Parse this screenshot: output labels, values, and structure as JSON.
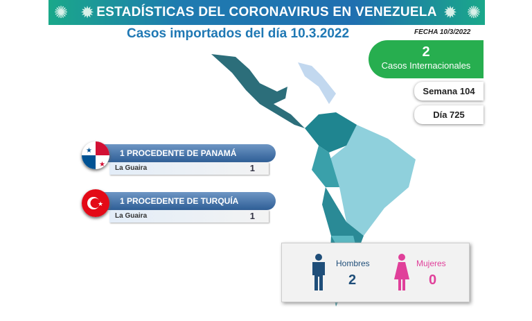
{
  "header": {
    "title": "ESTADÍSTICAS DEL CORONAVIRUS EN VENEZUELA"
  },
  "subtitle": "Casos importados del día 10.3.2022",
  "fecha": "FECHA 10/3/2022",
  "international": {
    "count": "2",
    "label": "Casos Internacionales"
  },
  "semana": "Semana 104",
  "dia": "Día 725",
  "origins": [
    {
      "title": "1 PROCEDENTE DE PANAMÁ",
      "flag": "panama-flag",
      "state": "La Guaira",
      "count": "1"
    },
    {
      "title": "1 PROCEDENTE DE TURQUÍA",
      "flag": "turkey-flag",
      "state": "La Guaira",
      "count": "1"
    }
  ],
  "gender": {
    "men_label": "Hombres",
    "men": "2",
    "women_label": "Mujeres",
    "women": "0"
  },
  "colors": {
    "header": "#1f6fb0",
    "green": "#27ae4f",
    "men": "#1f4e79",
    "women": "#e0409a",
    "map": "#2a8a96"
  }
}
